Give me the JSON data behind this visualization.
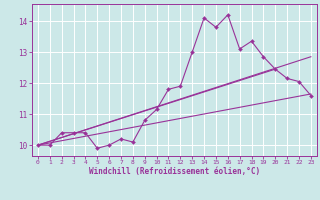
{
  "title": "",
  "xlabel": "Windchill (Refroidissement éolien,°C)",
  "bg_color": "#cce8e8",
  "line_color": "#993399",
  "xlim": [
    -0.5,
    23.5
  ],
  "ylim": [
    9.65,
    14.55
  ],
  "xticks": [
    0,
    1,
    2,
    3,
    4,
    5,
    6,
    7,
    8,
    9,
    10,
    11,
    12,
    13,
    14,
    15,
    16,
    17,
    18,
    19,
    20,
    21,
    22,
    23
  ],
  "yticks": [
    10,
    11,
    12,
    13,
    14
  ],
  "main_x": [
    0,
    1,
    2,
    3,
    4,
    5,
    6,
    7,
    8,
    9,
    10,
    11,
    12,
    13,
    14,
    15,
    16,
    17,
    18,
    19,
    20,
    21,
    22,
    23
  ],
  "main_y": [
    10.0,
    10.0,
    10.4,
    10.4,
    10.4,
    9.9,
    10.0,
    10.2,
    10.1,
    10.8,
    11.15,
    11.8,
    11.9,
    13.0,
    14.1,
    13.8,
    14.2,
    13.1,
    13.35,
    12.85,
    12.45,
    12.15,
    12.05,
    11.6
  ],
  "line2_x": [
    0,
    23
  ],
  "line2_y": [
    10.0,
    11.65
  ],
  "line3_x": [
    0,
    20
  ],
  "line3_y": [
    10.0,
    12.45
  ],
  "line4_x": [
    0,
    23
  ],
  "line4_y": [
    10.0,
    12.85
  ]
}
